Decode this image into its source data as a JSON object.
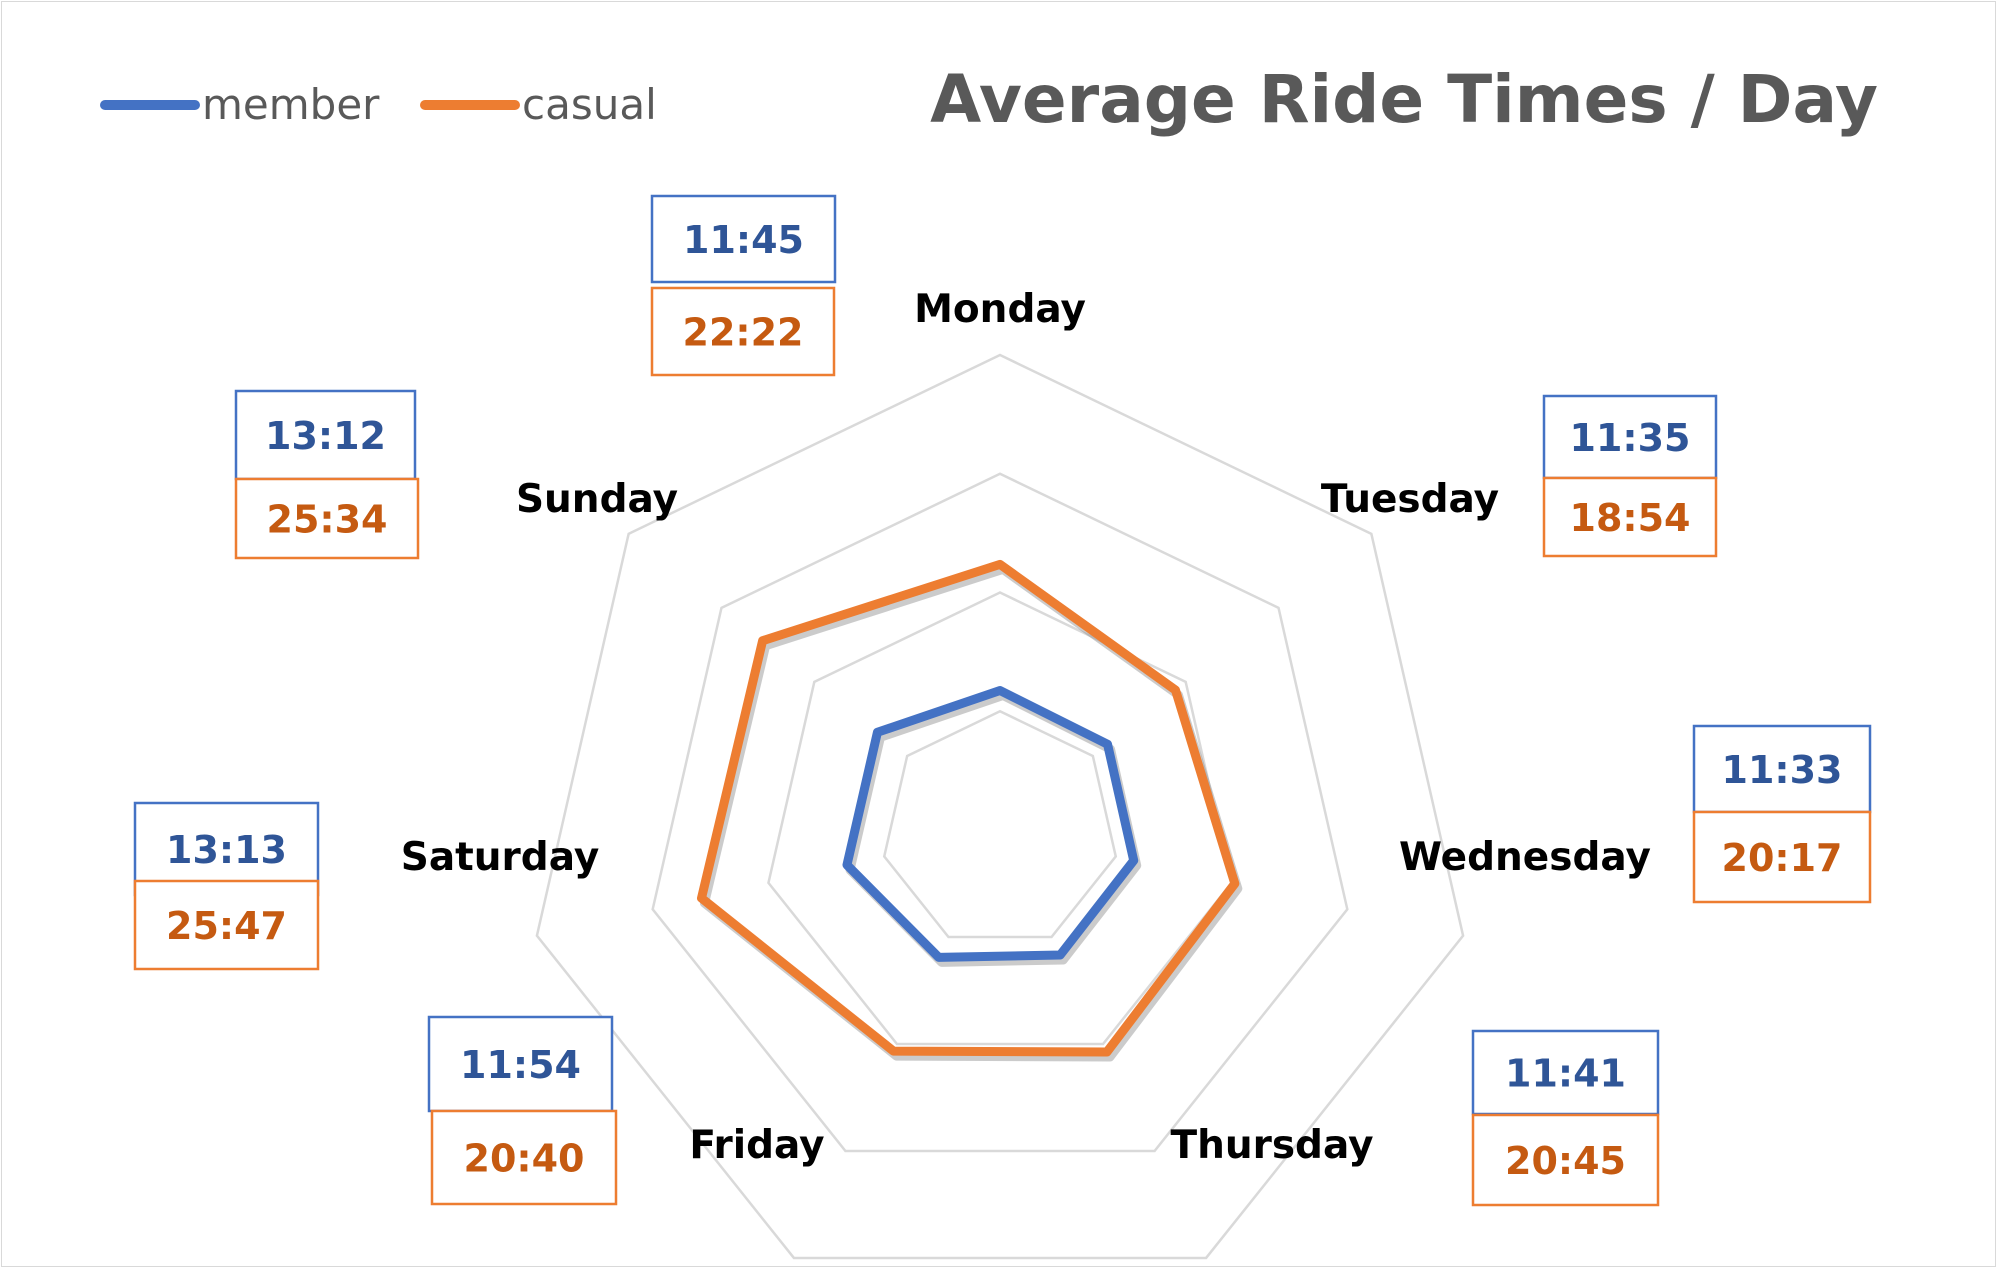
{
  "chart_data": {
    "type": "radar",
    "title": "Average Ride Times / Day",
    "categories": [
      "Monday",
      "Tuesday",
      "Wednesday",
      "Thursday",
      "Friday",
      "Saturday",
      "Sunday"
    ],
    "series": [
      {
        "name": "member",
        "color": "#4472c4",
        "values_minutes": [
          11.75,
          11.583,
          11.55,
          11.683,
          11.9,
          13.217,
          13.2
        ],
        "labels": [
          "11:45",
          "11:35",
          "11:33",
          "11:41",
          "11:54",
          "13:13",
          "13:12"
        ]
      },
      {
        "name": "casual",
        "color": "#ed7d31",
        "values_minutes": [
          22.367,
          18.9,
          20.283,
          20.75,
          20.667,
          25.783,
          25.567
        ],
        "labels": [
          "22:22",
          "18:54",
          "20:17",
          "20:45",
          "20:40",
          "25:47",
          "25:34"
        ]
      }
    ],
    "radial_axis": {
      "min": 0,
      "max": 40,
      "gridlines": [
        0,
        10,
        20,
        30,
        40
      ],
      "tick_labels_shown": false
    },
    "legend": {
      "position": "top-left"
    },
    "data_label_colors": {
      "member": "#2f5597",
      "casual": "#c55a11"
    }
  }
}
